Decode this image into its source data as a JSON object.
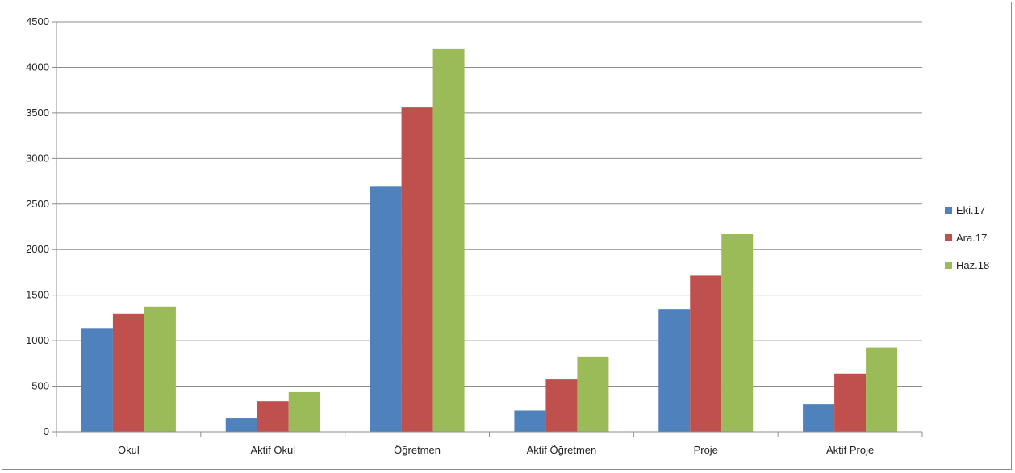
{
  "chart_data": {
    "type": "bar",
    "categories": [
      "Okul",
      "Aktif Okul",
      "Öğretmen",
      "Aktif Öğretmen",
      "Proje",
      "Aktif Proje"
    ],
    "series": [
      {
        "name": "Eki.17",
        "color": "#4f81bd",
        "values": [
          1140,
          150,
          2690,
          235,
          1345,
          300
        ]
      },
      {
        "name": "Ara.17",
        "color": "#c0504d",
        "values": [
          1295,
          335,
          3560,
          575,
          1715,
          640
        ]
      },
      {
        "name": "Haz.18",
        "color": "#9bbb59",
        "values": [
          1375,
          435,
          4200,
          825,
          2170,
          925
        ]
      }
    ],
    "y_ticks": [
      "0",
      "500",
      "1000",
      "1500",
      "2000",
      "2500",
      "3000",
      "3500",
      "4000",
      "4500"
    ],
    "ylim": [
      0,
      4500
    ],
    "grid": true,
    "legend_position": "right"
  }
}
